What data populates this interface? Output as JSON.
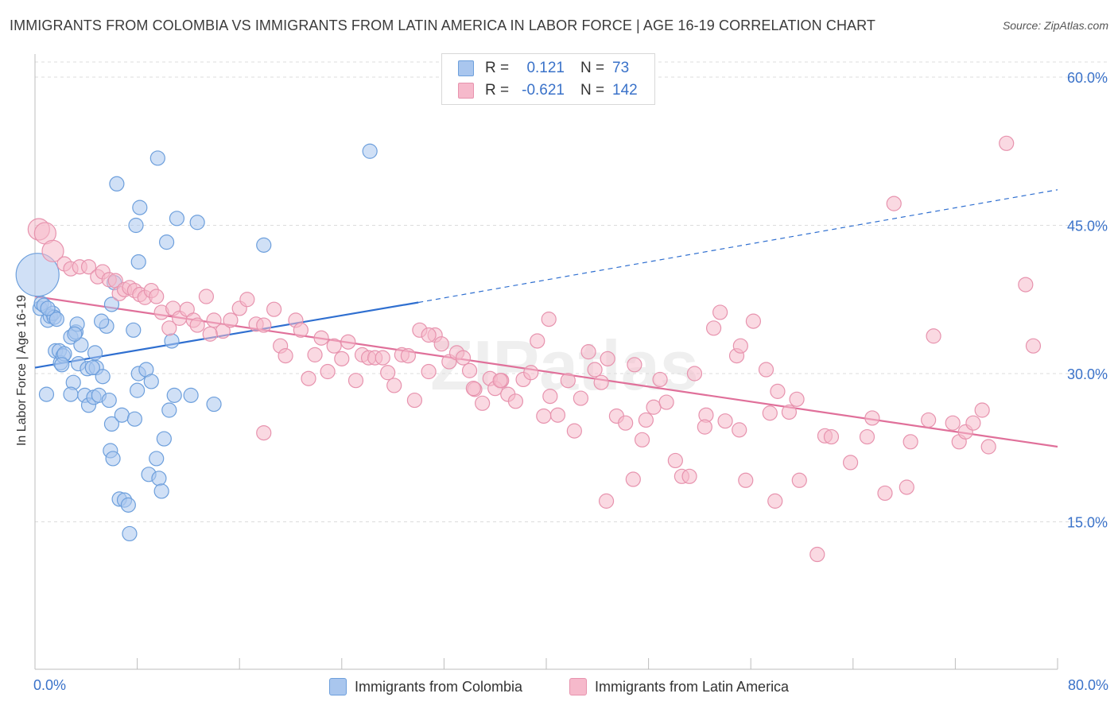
{
  "header": {
    "title": "IMMIGRANTS FROM COLOMBIA VS IMMIGRANTS FROM LATIN AMERICA IN LABOR FORCE | AGE 16-19 CORRELATION CHART",
    "source": "Source: ZipAtlas.com"
  },
  "legend": {
    "r_label": "R =",
    "n_label": "N =",
    "series": [
      {
        "r": "0.121",
        "n": "73"
      },
      {
        "r": "-0.621",
        "n": "142"
      }
    ]
  },
  "colors": {
    "blue_fill": "#a9c6ee",
    "blue_stroke": "#6d9fdc",
    "blue_line": "#2f6fd0",
    "pink_fill": "#f6b9cb",
    "pink_stroke": "#e793ae",
    "pink_line": "#e0709a",
    "grid": "#dcdcdc",
    "tick_text": "#3a72c9",
    "watermark": "#e2e2e2"
  },
  "watermark": "ZIPatlas",
  "chart_data": {
    "type": "scatter",
    "ylabel": "In Labor Force | Age 16-19",
    "xlim": [
      0,
      80
    ],
    "ylim": [
      0,
      63
    ],
    "x_tick_labels": [
      "0.0%",
      "80.0%"
    ],
    "y_ticks": [
      15,
      30,
      45,
      60
    ],
    "y_tick_labels": [
      "15.0%",
      "30.0%",
      "45.0%",
      "60.0%"
    ],
    "grid": "horizontal dashed",
    "legend_position": "top-center and bottom",
    "series": [
      {
        "name": "Immigrants from Colombia",
        "color": "#a9c6ee",
        "trend": {
          "x0": 0,
          "y0": 30.6,
          "x1": 30,
          "y1": 37.2,
          "dashed_to_x": 80,
          "dashed_to_y": 48.6
        },
        "points": [
          [
            0.2,
            40.0,
            3.0
          ],
          [
            0.4,
            36.6,
            1
          ],
          [
            0.5,
            37.1,
            1
          ],
          [
            0.7,
            36.9,
            1
          ],
          [
            1.0,
            35.4,
            1
          ],
          [
            1.2,
            35.8,
            1
          ],
          [
            1.4,
            36.1,
            1
          ],
          [
            1.5,
            35.7,
            1
          ],
          [
            1.7,
            35.5,
            1
          ],
          [
            0.9,
            27.9,
            1
          ],
          [
            1.6,
            32.3,
            1
          ],
          [
            1.9,
            32.3,
            1
          ],
          [
            2.0,
            31.1,
            1
          ],
          [
            2.2,
            31.8,
            1
          ],
          [
            2.3,
            32.0,
            1
          ],
          [
            2.8,
            33.7,
            1
          ],
          [
            3.2,
            34.2,
            1
          ],
          [
            3.6,
            32.9,
            1
          ],
          [
            3.0,
            29.1,
            1
          ],
          [
            2.8,
            27.9,
            1
          ],
          [
            3.4,
            31.0,
            1
          ],
          [
            3.9,
            27.8,
            1
          ],
          [
            4.1,
            30.5,
            1
          ],
          [
            4.2,
            26.8,
            1
          ],
          [
            4.6,
            27.6,
            1
          ],
          [
            4.8,
            30.6,
            1
          ],
          [
            4.7,
            32.1,
            1
          ],
          [
            5.0,
            27.8,
            1
          ],
          [
            5.3,
            29.7,
            1
          ],
          [
            5.6,
            34.8,
            1
          ],
          [
            5.8,
            27.3,
            1
          ],
          [
            6.0,
            24.9,
            1
          ],
          [
            5.9,
            22.2,
            1
          ],
          [
            6.1,
            21.4,
            1
          ],
          [
            6.6,
            17.3,
            1
          ],
          [
            6.8,
            25.8,
            1
          ],
          [
            7.0,
            17.2,
            1
          ],
          [
            7.3,
            16.7,
            1
          ],
          [
            7.4,
            13.8,
            1
          ],
          [
            7.7,
            34.4,
            1
          ],
          [
            7.8,
            25.4,
            1
          ],
          [
            8.0,
            28.3,
            1
          ],
          [
            8.1,
            30.0,
            1
          ],
          [
            8.7,
            30.4,
            1
          ],
          [
            9.1,
            29.2,
            1
          ],
          [
            8.9,
            19.8,
            1
          ],
          [
            9.5,
            21.4,
            1
          ],
          [
            9.7,
            19.4,
            1
          ],
          [
            9.9,
            18.1,
            1
          ],
          [
            10.1,
            23.4,
            1
          ],
          [
            10.5,
            26.3,
            1
          ],
          [
            10.7,
            33.3,
            1
          ],
          [
            10.9,
            27.8,
            1
          ],
          [
            12.2,
            27.8,
            1
          ],
          [
            14.0,
            26.9,
            1
          ],
          [
            6.0,
            37.0,
            1
          ],
          [
            3.3,
            35.0,
            1
          ],
          [
            5.2,
            35.3,
            1
          ],
          [
            6.2,
            39.2,
            1
          ],
          [
            6.4,
            49.2,
            1
          ],
          [
            7.9,
            45.0,
            1
          ],
          [
            8.1,
            41.3,
            1
          ],
          [
            8.2,
            46.8,
            1
          ],
          [
            9.6,
            51.8,
            1
          ],
          [
            10.3,
            43.3,
            1
          ],
          [
            11.1,
            45.7,
            1
          ],
          [
            12.7,
            45.3,
            1
          ],
          [
            17.9,
            43.0,
            1
          ],
          [
            26.2,
            52.5,
            1
          ],
          [
            1.0,
            36.6,
            1
          ],
          [
            2.1,
            30.9,
            1
          ],
          [
            4.5,
            30.6,
            1
          ],
          [
            3.1,
            34.0,
            1
          ]
        ]
      },
      {
        "name": "Immigrants from Latin America",
        "color": "#f6b9cb",
        "trend": {
          "x0": 0,
          "y0": 37.8,
          "x1": 80,
          "y1": 22.6
        },
        "points": [
          [
            0.3,
            44.6,
            1.5
          ],
          [
            0.8,
            44.2,
            1.5
          ],
          [
            1.4,
            42.4,
            1.5
          ],
          [
            2.3,
            41.1,
            1
          ],
          [
            2.8,
            40.6,
            1
          ],
          [
            3.5,
            40.8,
            1
          ],
          [
            4.2,
            40.8,
            1
          ],
          [
            4.9,
            39.8,
            1
          ],
          [
            5.3,
            40.3,
            1
          ],
          [
            5.8,
            39.5,
            1
          ],
          [
            6.3,
            39.4,
            1
          ],
          [
            6.6,
            38.1,
            1
          ],
          [
            7.0,
            38.5,
            1
          ],
          [
            7.4,
            38.7,
            1
          ],
          [
            7.8,
            38.4,
            1
          ],
          [
            8.2,
            38.0,
            1
          ],
          [
            8.6,
            37.7,
            1
          ],
          [
            9.1,
            38.4,
            1
          ],
          [
            9.5,
            37.8,
            1
          ],
          [
            9.9,
            36.2,
            1
          ],
          [
            10.5,
            34.6,
            1
          ],
          [
            10.8,
            36.6,
            1
          ],
          [
            11.3,
            35.6,
            1
          ],
          [
            11.9,
            36.5,
            1
          ],
          [
            12.4,
            35.4,
            1
          ],
          [
            12.7,
            34.9,
            1
          ],
          [
            13.4,
            37.8,
            1
          ],
          [
            14.0,
            35.4,
            1
          ],
          [
            14.7,
            34.3,
            1
          ],
          [
            15.3,
            35.4,
            1
          ],
          [
            16.0,
            36.6,
            1
          ],
          [
            16.6,
            37.5,
            1
          ],
          [
            17.3,
            35.0,
            1
          ],
          [
            17.9,
            34.9,
            1
          ],
          [
            18.7,
            36.5,
            1
          ],
          [
            19.2,
            32.8,
            1
          ],
          [
            19.6,
            31.8,
            1
          ],
          [
            20.4,
            35.4,
            1
          ],
          [
            20.8,
            34.4,
            1
          ],
          [
            21.4,
            29.5,
            1
          ],
          [
            21.9,
            31.9,
            1
          ],
          [
            22.4,
            33.6,
            1
          ],
          [
            22.9,
            30.2,
            1
          ],
          [
            23.4,
            32.8,
            1
          ],
          [
            24.0,
            31.5,
            1
          ],
          [
            24.5,
            33.2,
            1
          ],
          [
            25.1,
            29.3,
            1
          ],
          [
            25.6,
            31.9,
            1
          ],
          [
            26.1,
            31.6,
            1
          ],
          [
            26.6,
            31.6,
            1
          ],
          [
            27.2,
            31.6,
            1
          ],
          [
            27.6,
            30.1,
            1
          ],
          [
            28.1,
            28.8,
            1
          ],
          [
            28.7,
            31.9,
            1
          ],
          [
            29.2,
            31.8,
            1
          ],
          [
            29.7,
            27.3,
            1
          ],
          [
            30.1,
            34.4,
            1
          ],
          [
            30.8,
            30.2,
            1
          ],
          [
            31.3,
            33.9,
            1
          ],
          [
            31.8,
            33.0,
            1
          ],
          [
            32.4,
            31.2,
            1
          ],
          [
            33.0,
            32.1,
            1
          ],
          [
            33.5,
            31.6,
            1
          ],
          [
            34.0,
            30.3,
            1
          ],
          [
            34.4,
            28.4,
            1
          ],
          [
            35.0,
            27.0,
            1
          ],
          [
            35.6,
            29.5,
            1
          ],
          [
            36.0,
            28.5,
            1
          ],
          [
            36.5,
            29.3,
            1
          ],
          [
            37.0,
            27.9,
            1
          ],
          [
            37.6,
            27.2,
            1
          ],
          [
            38.2,
            29.4,
            1
          ],
          [
            38.8,
            30.1,
            1
          ],
          [
            39.3,
            33.3,
            1
          ],
          [
            39.8,
            25.7,
            1
          ],
          [
            40.3,
            27.7,
            1
          ],
          [
            40.9,
            25.8,
            1
          ],
          [
            41.7,
            29.3,
            1
          ],
          [
            42.2,
            24.2,
            1
          ],
          [
            42.7,
            27.5,
            1
          ],
          [
            43.3,
            32.2,
            1
          ],
          [
            43.8,
            30.4,
            1
          ],
          [
            44.3,
            29.1,
            1
          ],
          [
            44.8,
            31.5,
            1
          ],
          [
            45.5,
            25.7,
            1
          ],
          [
            46.2,
            25.0,
            1
          ],
          [
            46.9,
            30.9,
            1
          ],
          [
            47.5,
            23.3,
            1
          ],
          [
            47.8,
            25.3,
            1
          ],
          [
            48.4,
            26.6,
            1
          ],
          [
            48.9,
            29.4,
            1
          ],
          [
            49.4,
            27.1,
            1
          ],
          [
            50.1,
            21.2,
            1
          ],
          [
            50.6,
            19.6,
            1
          ],
          [
            51.2,
            19.6,
            1
          ],
          [
            51.6,
            30.0,
            1
          ],
          [
            52.5,
            25.8,
            1
          ],
          [
            53.1,
            34.6,
            1
          ],
          [
            53.6,
            36.2,
            1
          ],
          [
            54.0,
            25.2,
            1
          ],
          [
            54.9,
            31.8,
            1
          ],
          [
            55.2,
            32.8,
            1
          ],
          [
            55.6,
            19.2,
            1
          ],
          [
            56.2,
            35.3,
            1
          ],
          [
            57.2,
            30.4,
            1
          ],
          [
            57.5,
            26.0,
            1
          ],
          [
            57.9,
            17.1,
            1
          ],
          [
            59.0,
            26.1,
            1
          ],
          [
            59.6,
            27.4,
            1
          ],
          [
            59.8,
            19.2,
            1
          ],
          [
            61.2,
            11.7,
            1
          ],
          [
            61.8,
            23.7,
            1
          ],
          [
            62.3,
            23.6,
            1
          ],
          [
            63.8,
            21.0,
            1
          ],
          [
            65.1,
            23.6,
            1
          ],
          [
            65.5,
            25.5,
            1
          ],
          [
            66.5,
            17.9,
            1
          ],
          [
            67.2,
            47.2,
            1
          ],
          [
            68.2,
            18.5,
            1
          ],
          [
            68.5,
            23.1,
            1
          ],
          [
            69.9,
            25.3,
            1
          ],
          [
            70.3,
            33.8,
            1
          ],
          [
            71.8,
            25.0,
            1
          ],
          [
            72.3,
            23.1,
            1
          ],
          [
            72.8,
            24.1,
            1
          ],
          [
            73.4,
            25.0,
            1
          ],
          [
            74.1,
            26.3,
            1
          ],
          [
            74.6,
            22.6,
            1
          ],
          [
            76.0,
            53.3,
            1
          ],
          [
            77.5,
            39.0,
            1
          ],
          [
            78.1,
            32.8,
            1
          ],
          [
            36.4,
            29.3,
            1
          ],
          [
            34.3,
            28.5,
            1
          ],
          [
            30.8,
            33.9,
            1
          ],
          [
            40.2,
            35.5,
            1
          ],
          [
            52.4,
            24.6,
            1
          ],
          [
            17.9,
            24.0,
            1
          ],
          [
            46.8,
            19.3,
            1
          ],
          [
            44.7,
            17.1,
            1
          ],
          [
            13.7,
            34.0,
            1
          ],
          [
            55.1,
            24.3,
            1
          ],
          [
            58.1,
            28.2,
            1
          ]
        ]
      }
    ]
  },
  "bottom_legend": [
    {
      "label": "Immigrants from Colombia"
    },
    {
      "label": "Immigrants from Latin America"
    }
  ]
}
